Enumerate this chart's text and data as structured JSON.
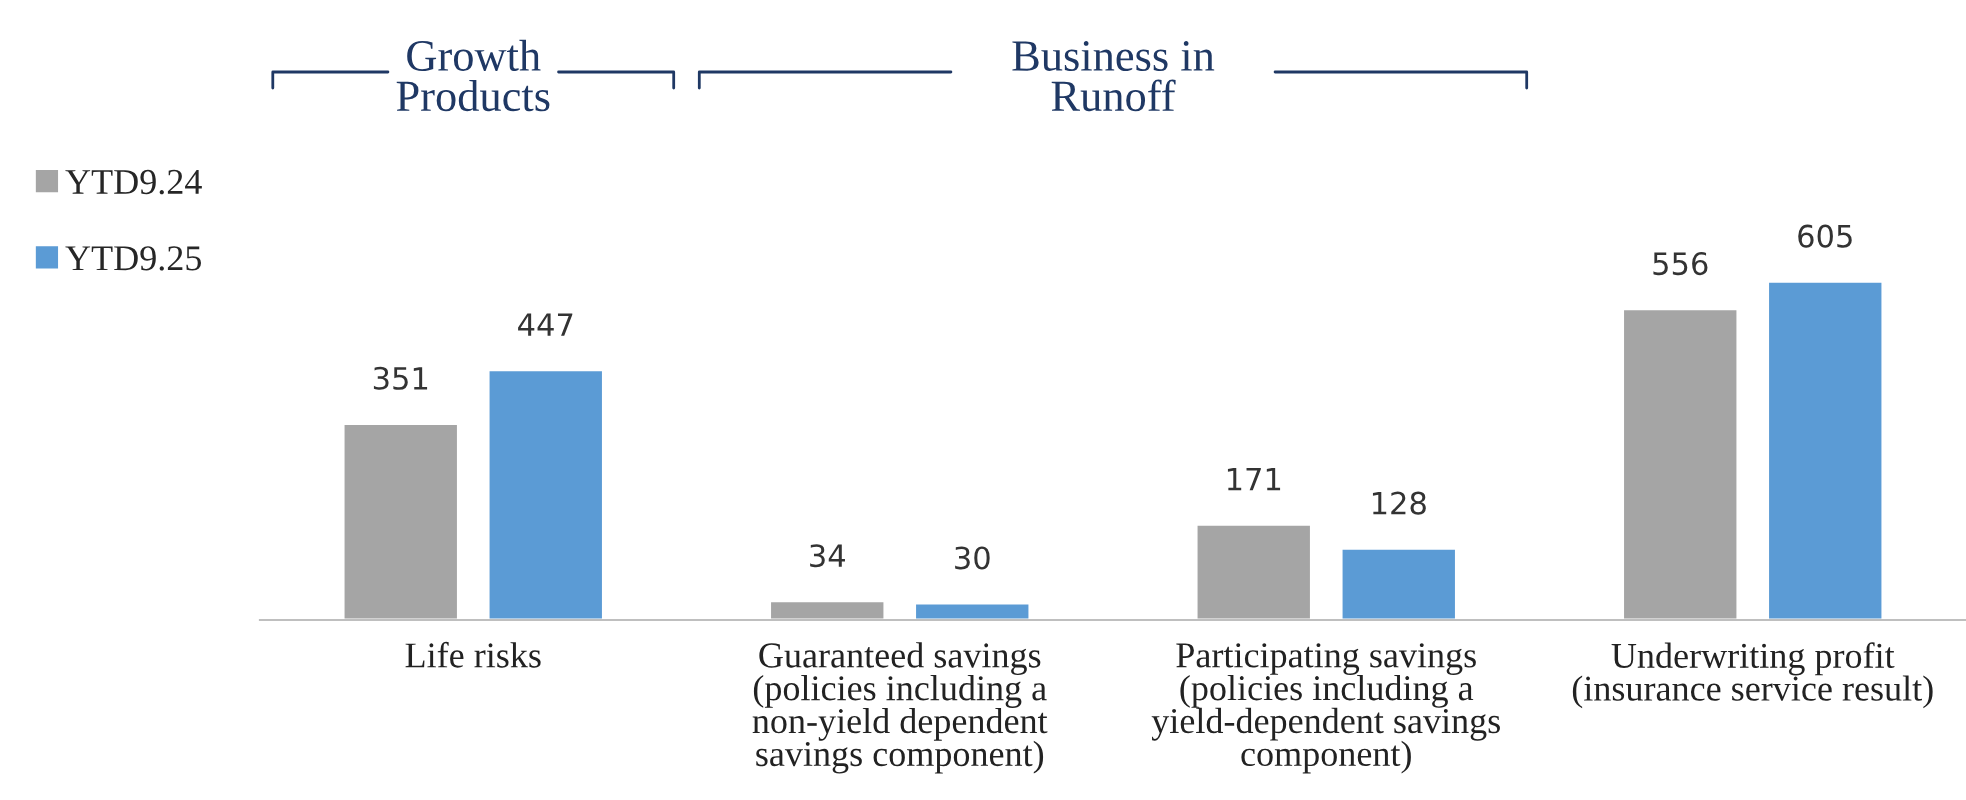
{
  "chart_data": {
    "type": "bar",
    "categories": [
      "Life risks",
      "Guaranteed savings\n(policies including a\nnon-yield dependent\nsavings component)",
      "Participating savings\n(policies including a\nyield-dependent savings\ncomponent)",
      "Underwriting profit\n(insurance service result)"
    ],
    "series": [
      {
        "name": "YTD9.24",
        "color": "#a5a5a5",
        "values": [
          351,
          34,
          171,
          556
        ]
      },
      {
        "name": "YTD9.25",
        "color": "#5b9bd5",
        "values": [
          447,
          30,
          128,
          605
        ]
      }
    ],
    "data_labels": true,
    "legend": "top left",
    "grid": false,
    "annotations": [
      "Growth\nProducts",
      "Business in\nRunoff"
    ]
  }
}
